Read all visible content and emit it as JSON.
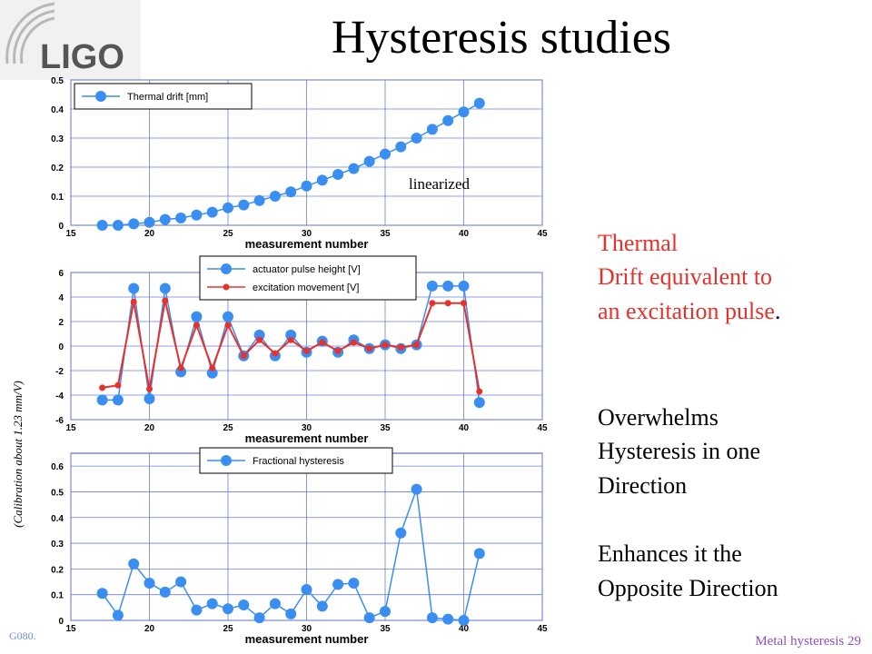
{
  "slide": {
    "logo": "LIGO",
    "title": "Hysteresis studies",
    "calibration_note": "(Calibration about 1.23 mm/V)",
    "notes": [
      {
        "text": "Thermal",
        "color": "#e8312a"
      },
      {
        "text": "Drift equivalent to",
        "color": "#e8312a"
      },
      {
        "text": "an excitation pulse",
        "color": "#e8312a"
      },
      {
        "text": "Overwhelms",
        "color": "#000000"
      },
      {
        "text": "Hysteresis in one",
        "color": "#000000"
      },
      {
        "text": "Direction",
        "color": "#000000"
      },
      {
        "text": "Enhances it the",
        "color": "#000000"
      },
      {
        "text": "Opposite Direction",
        "color": "#000000"
      }
    ],
    "period": ".",
    "footer_left": "G080.",
    "footer_right": "Metal hysteresis 29"
  },
  "chart_data": [
    {
      "type": "line",
      "xlabel": "measurement number",
      "annotation": "linearized",
      "grid": true,
      "x": [
        17,
        18,
        19,
        20,
        21,
        22,
        23,
        24,
        25,
        26,
        27,
        28,
        29,
        30,
        31,
        32,
        33,
        34,
        35,
        36,
        37,
        38,
        39,
        40,
        41
      ],
      "xlim": [
        15,
        45
      ],
      "xticks": [
        15,
        20,
        25,
        30,
        35,
        40,
        45
      ],
      "ylim": [
        0,
        0.5
      ],
      "yticks": [
        0,
        0.1,
        0.2,
        0.3,
        0.4,
        0.5
      ],
      "series": [
        {
          "name": "Thermal drift [mm]",
          "color": "#3a8ef2",
          "values": [
            0,
            0,
            0.005,
            0.01,
            0.02,
            0.025,
            0.035,
            0.045,
            0.06,
            0.07,
            0.085,
            0.1,
            0.115,
            0.135,
            0.155,
            0.175,
            0.195,
            0.22,
            0.245,
            0.27,
            0.3,
            0.33,
            0.36,
            0.39,
            0.42
          ]
        }
      ]
    },
    {
      "type": "line",
      "xlabel": "measurement number",
      "grid": true,
      "x": [
        17,
        18,
        19,
        20,
        21,
        22,
        23,
        24,
        25,
        26,
        27,
        28,
        29,
        30,
        31,
        32,
        33,
        34,
        35,
        36,
        37,
        38,
        39,
        40,
        41
      ],
      "xlim": [
        15,
        45
      ],
      "xticks": [
        15,
        20,
        25,
        30,
        35,
        40,
        45
      ],
      "ylim": [
        -6,
        6
      ],
      "yticks": [
        -6,
        -4,
        -2,
        0,
        2,
        4,
        6
      ],
      "series": [
        {
          "name": "actuator pulse height [V]",
          "color": "#3a8ef2",
          "values": [
            -4.4,
            -4.4,
            4.7,
            -4.3,
            4.7,
            -2.1,
            2.4,
            -2.2,
            2.4,
            -0.8,
            0.9,
            -0.8,
            0.9,
            -0.5,
            0.4,
            -0.5,
            0.5,
            -0.2,
            0.1,
            -0.2,
            0.1,
            4.9,
            4.9,
            4.9,
            -4.6
          ]
        },
        {
          "name": "excitation movement [V]",
          "color": "#e8312a",
          "values": [
            -3.4,
            -3.2,
            3.6,
            -3.5,
            3.7,
            -1.8,
            1.7,
            -1.8,
            1.7,
            -0.8,
            0.5,
            -0.6,
            0.5,
            -0.4,
            0.3,
            -0.4,
            0.3,
            -0.2,
            0.1,
            -0.1,
            0.1,
            3.5,
            3.5,
            3.5,
            -3.7
          ]
        }
      ]
    },
    {
      "type": "line",
      "xlabel": "measurement number",
      "grid": true,
      "x": [
        17,
        18,
        19,
        20,
        21,
        22,
        23,
        24,
        25,
        26,
        27,
        28,
        29,
        30,
        31,
        32,
        33,
        34,
        35,
        36,
        37,
        38,
        39,
        40,
        41
      ],
      "xlim": [
        15,
        45
      ],
      "xticks": [
        15,
        20,
        25,
        30,
        35,
        40,
        45
      ],
      "ylim": [
        0,
        0.65
      ],
      "yticks": [
        0,
        0.1,
        0.2,
        0.3,
        0.4,
        0.5,
        0.6
      ],
      "series": [
        {
          "name": "Fractional hysteresis",
          "color": "#3a8ef2",
          "values": [
            0.105,
            0.02,
            0.22,
            0.145,
            0.11,
            0.15,
            0.04,
            0.065,
            0.045,
            0.06,
            0.01,
            0.065,
            0.025,
            0.12,
            0.055,
            0.14,
            0.145,
            0.01,
            0.035,
            0.34,
            0.51,
            0.01,
            0.005,
            0,
            0.26
          ]
        }
      ]
    }
  ]
}
